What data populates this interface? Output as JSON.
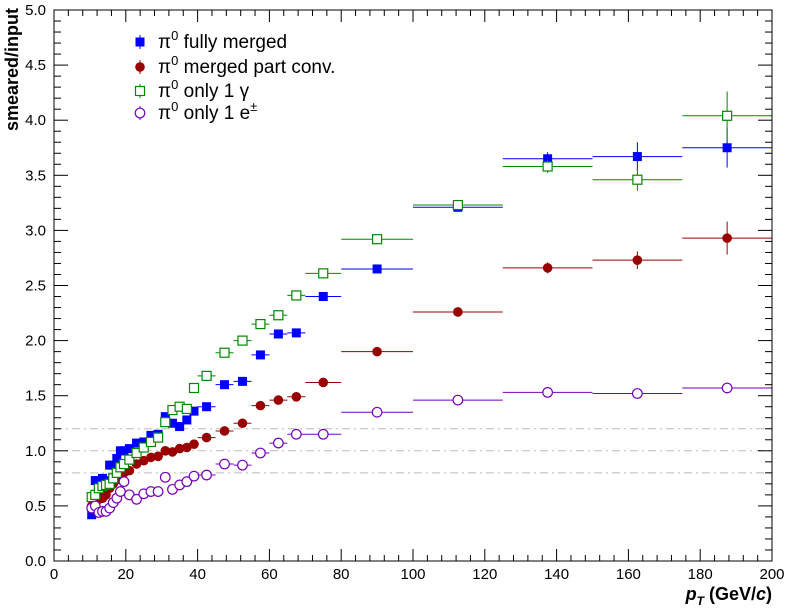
{
  "chart_data": {
    "type": "scatter",
    "xlabel": "p_T (GeV/c)",
    "xlabel_parts": {
      "p": "p",
      "sub": "T",
      "unit_open": " (GeV/",
      "unit_var": "c",
      "unit_close": ")"
    },
    "ylabel": "smeared/input",
    "xlim": [
      0,
      200
    ],
    "ylim": [
      0,
      5
    ],
    "x_ticks": [
      0,
      20,
      40,
      60,
      80,
      100,
      120,
      140,
      160,
      180,
      200
    ],
    "x_tick_labels": [
      "0",
      "20",
      "40",
      "60",
      "80",
      "100",
      "120",
      "140",
      "160",
      "180",
      "200"
    ],
    "y_ticks": [
      0,
      0.5,
      1.0,
      1.5,
      2.0,
      2.5,
      3.0,
      3.5,
      4.0,
      4.5,
      5.0
    ],
    "y_tick_labels": [
      "0.0",
      "0.5",
      "1.0",
      "1.5",
      "2.0",
      "2.5",
      "3.0",
      "3.5",
      "4.0",
      "4.5",
      "5.0"
    ],
    "reference_lines": [
      0.8,
      1.0,
      1.2
    ],
    "legend_position": "top-left",
    "series": [
      {
        "name": "π0 fully merged",
        "label_parts": {
          "main": "π",
          "sup": "0",
          "rest": " fully merged"
        },
        "color": "#0000ff",
        "marker": "square-filled",
        "points": [
          {
            "x": 10.5,
            "y": 0.42,
            "xerr": 0.5,
            "yerr": 0.02
          },
          {
            "x": 11.5,
            "y": 0.73,
            "xerr": 0.5,
            "yerr": 0.02
          },
          {
            "x": 12.5,
            "y": 0.62,
            "xerr": 0.5,
            "yerr": 0.02
          },
          {
            "x": 13.5,
            "y": 0.75,
            "xerr": 0.5,
            "yerr": 0.02
          },
          {
            "x": 14.5,
            "y": 0.73,
            "xerr": 0.5,
            "yerr": 0.02
          },
          {
            "x": 15.5,
            "y": 0.87,
            "xerr": 0.5,
            "yerr": 0.02
          },
          {
            "x": 16.5,
            "y": 0.87,
            "xerr": 0.5,
            "yerr": 0.02
          },
          {
            "x": 17.5,
            "y": 0.93,
            "xerr": 0.5,
            "yerr": 0.02
          },
          {
            "x": 18.5,
            "y": 1.0,
            "xerr": 0.5,
            "yerr": 0.02
          },
          {
            "x": 19.5,
            "y": 1.0,
            "xerr": 0.5,
            "yerr": 0.02
          },
          {
            "x": 21.0,
            "y": 1.02,
            "xerr": 1.0,
            "yerr": 0.02
          },
          {
            "x": 23.0,
            "y": 1.07,
            "xerr": 1.0,
            "yerr": 0.02
          },
          {
            "x": 25.0,
            "y": 1.08,
            "xerr": 1.0,
            "yerr": 0.02
          },
          {
            "x": 27.0,
            "y": 1.14,
            "xerr": 1.0,
            "yerr": 0.02
          },
          {
            "x": 29.0,
            "y": 1.15,
            "xerr": 1.0,
            "yerr": 0.02
          },
          {
            "x": 31.0,
            "y": 1.31,
            "xerr": 1.0,
            "yerr": 0.02
          },
          {
            "x": 33.0,
            "y": 1.25,
            "xerr": 1.0,
            "yerr": 0.02
          },
          {
            "x": 35.0,
            "y": 1.22,
            "xerr": 1.0,
            "yerr": 0.02
          },
          {
            "x": 37.0,
            "y": 1.28,
            "xerr": 1.0,
            "yerr": 0.02
          },
          {
            "x": 39.0,
            "y": 1.36,
            "xerr": 1.0,
            "yerr": 0.02
          },
          {
            "x": 42.5,
            "y": 1.4,
            "xerr": 2.5,
            "yerr": 0.02
          },
          {
            "x": 47.5,
            "y": 1.6,
            "xerr": 2.5,
            "yerr": 0.02
          },
          {
            "x": 52.5,
            "y": 1.63,
            "xerr": 2.5,
            "yerr": 0.02
          },
          {
            "x": 57.5,
            "y": 1.87,
            "xerr": 2.5,
            "yerr": 0.03
          },
          {
            "x": 62.5,
            "y": 2.06,
            "xerr": 2.5,
            "yerr": 0.03
          },
          {
            "x": 67.5,
            "y": 2.07,
            "xerr": 2.5,
            "yerr": 0.03
          },
          {
            "x": 75.0,
            "y": 2.4,
            "xerr": 5.0,
            "yerr": 0.03
          },
          {
            "x": 90.0,
            "y": 2.65,
            "xerr": 10.0,
            "yerr": 0.03
          },
          {
            "x": 112.5,
            "y": 3.21,
            "xerr": 12.5,
            "yerr": 0.04
          },
          {
            "x": 137.5,
            "y": 3.65,
            "xerr": 12.5,
            "yerr": 0.06
          },
          {
            "x": 162.5,
            "y": 3.67,
            "xerr": 12.5,
            "yerr": 0.13
          },
          {
            "x": 187.5,
            "y": 3.75,
            "xerr": 12.5,
            "yerr": 0.18
          }
        ]
      },
      {
        "name": "π0 merged part conv.",
        "label_parts": {
          "main": "π",
          "sup": "0",
          "rest": " merged part conv."
        },
        "color": "#990000",
        "marker": "circle-filled",
        "points": [
          {
            "x": 10.5,
            "y": 0.5,
            "xerr": 0.5,
            "yerr": 0.02
          },
          {
            "x": 11.5,
            "y": 0.53,
            "xerr": 0.5,
            "yerr": 0.02
          },
          {
            "x": 12.5,
            "y": 0.56,
            "xerr": 0.5,
            "yerr": 0.02
          },
          {
            "x": 13.5,
            "y": 0.57,
            "xerr": 0.5,
            "yerr": 0.02
          },
          {
            "x": 14.5,
            "y": 0.6,
            "xerr": 0.5,
            "yerr": 0.02
          },
          {
            "x": 15.5,
            "y": 0.66,
            "xerr": 0.5,
            "yerr": 0.02
          },
          {
            "x": 16.5,
            "y": 0.7,
            "xerr": 0.5,
            "yerr": 0.02
          },
          {
            "x": 17.5,
            "y": 0.74,
            "xerr": 0.5,
            "yerr": 0.02
          },
          {
            "x": 18.5,
            "y": 0.77,
            "xerr": 0.5,
            "yerr": 0.02
          },
          {
            "x": 19.5,
            "y": 0.8,
            "xerr": 0.5,
            "yerr": 0.02
          },
          {
            "x": 21.0,
            "y": 0.82,
            "xerr": 1.0,
            "yerr": 0.02
          },
          {
            "x": 23.0,
            "y": 0.88,
            "xerr": 1.0,
            "yerr": 0.02
          },
          {
            "x": 25.0,
            "y": 0.91,
            "xerr": 1.0,
            "yerr": 0.02
          },
          {
            "x": 27.0,
            "y": 0.94,
            "xerr": 1.0,
            "yerr": 0.02
          },
          {
            "x": 29.0,
            "y": 0.95,
            "xerr": 1.0,
            "yerr": 0.02
          },
          {
            "x": 31.0,
            "y": 1.0,
            "xerr": 1.0,
            "yerr": 0.02
          },
          {
            "x": 33.0,
            "y": 0.99,
            "xerr": 1.0,
            "yerr": 0.02
          },
          {
            "x": 35.0,
            "y": 1.02,
            "xerr": 1.0,
            "yerr": 0.02
          },
          {
            "x": 37.0,
            "y": 1.03,
            "xerr": 1.0,
            "yerr": 0.02
          },
          {
            "x": 39.0,
            "y": 1.06,
            "xerr": 1.0,
            "yerr": 0.02
          },
          {
            "x": 42.5,
            "y": 1.12,
            "xerr": 2.5,
            "yerr": 0.02
          },
          {
            "x": 47.5,
            "y": 1.18,
            "xerr": 2.5,
            "yerr": 0.02
          },
          {
            "x": 52.5,
            "y": 1.25,
            "xerr": 2.5,
            "yerr": 0.02
          },
          {
            "x": 57.5,
            "y": 1.41,
            "xerr": 2.5,
            "yerr": 0.03
          },
          {
            "x": 62.5,
            "y": 1.46,
            "xerr": 2.5,
            "yerr": 0.03
          },
          {
            "x": 67.5,
            "y": 1.49,
            "xerr": 2.5,
            "yerr": 0.03
          },
          {
            "x": 75.0,
            "y": 1.62,
            "xerr": 5.0,
            "yerr": 0.03
          },
          {
            "x": 90.0,
            "y": 1.9,
            "xerr": 10.0,
            "yerr": 0.03
          },
          {
            "x": 112.5,
            "y": 2.26,
            "xerr": 12.5,
            "yerr": 0.04
          },
          {
            "x": 137.5,
            "y": 2.66,
            "xerr": 12.5,
            "yerr": 0.05
          },
          {
            "x": 162.5,
            "y": 2.73,
            "xerr": 12.5,
            "yerr": 0.08
          },
          {
            "x": 187.5,
            "y": 2.93,
            "xerr": 12.5,
            "yerr": 0.15
          }
        ]
      },
      {
        "name": "π0 only 1 γ",
        "label_parts": {
          "main": "π",
          "sup": "0",
          "rest": " only 1 γ"
        },
        "color": "#008800",
        "marker": "square-open",
        "points": [
          {
            "x": 10.5,
            "y": 0.58,
            "xerr": 0.5,
            "yerr": 0.02
          },
          {
            "x": 11.5,
            "y": 0.6,
            "xerr": 0.5,
            "yerr": 0.02
          },
          {
            "x": 12.5,
            "y": 0.66,
            "xerr": 0.5,
            "yerr": 0.02
          },
          {
            "x": 13.5,
            "y": 0.68,
            "xerr": 0.5,
            "yerr": 0.02
          },
          {
            "x": 14.5,
            "y": 0.69,
            "xerr": 0.5,
            "yerr": 0.02
          },
          {
            "x": 15.5,
            "y": 0.7,
            "xerr": 0.5,
            "yerr": 0.02
          },
          {
            "x": 16.5,
            "y": 0.75,
            "xerr": 0.5,
            "yerr": 0.02
          },
          {
            "x": 17.5,
            "y": 0.8,
            "xerr": 0.5,
            "yerr": 0.02
          },
          {
            "x": 18.5,
            "y": 0.85,
            "xerr": 0.5,
            "yerr": 0.02
          },
          {
            "x": 19.5,
            "y": 0.88,
            "xerr": 0.5,
            "yerr": 0.02
          },
          {
            "x": 21.0,
            "y": 0.92,
            "xerr": 1.0,
            "yerr": 0.02
          },
          {
            "x": 23.0,
            "y": 0.98,
            "xerr": 1.0,
            "yerr": 0.02
          },
          {
            "x": 25.0,
            "y": 1.03,
            "xerr": 1.0,
            "yerr": 0.02
          },
          {
            "x": 27.0,
            "y": 1.08,
            "xerr": 1.0,
            "yerr": 0.02
          },
          {
            "x": 29.0,
            "y": 1.12,
            "xerr": 1.0,
            "yerr": 0.02
          },
          {
            "x": 31.0,
            "y": 1.26,
            "xerr": 1.0,
            "yerr": 0.02
          },
          {
            "x": 33.0,
            "y": 1.37,
            "xerr": 1.0,
            "yerr": 0.02
          },
          {
            "x": 35.0,
            "y": 1.4,
            "xerr": 1.0,
            "yerr": 0.02
          },
          {
            "x": 37.0,
            "y": 1.38,
            "xerr": 1.0,
            "yerr": 0.02
          },
          {
            "x": 39.0,
            "y": 1.57,
            "xerr": 1.0,
            "yerr": 0.02
          },
          {
            "x": 42.5,
            "y": 1.68,
            "xerr": 2.5,
            "yerr": 0.02
          },
          {
            "x": 47.5,
            "y": 1.89,
            "xerr": 2.5,
            "yerr": 0.02
          },
          {
            "x": 52.5,
            "y": 2.0,
            "xerr": 2.5,
            "yerr": 0.02
          },
          {
            "x": 57.5,
            "y": 2.15,
            "xerr": 2.5,
            "yerr": 0.03
          },
          {
            "x": 62.5,
            "y": 2.23,
            "xerr": 2.5,
            "yerr": 0.03
          },
          {
            "x": 67.5,
            "y": 2.41,
            "xerr": 2.5,
            "yerr": 0.03
          },
          {
            "x": 75.0,
            "y": 2.61,
            "xerr": 5.0,
            "yerr": 0.03
          },
          {
            "x": 90.0,
            "y": 2.92,
            "xerr": 10.0,
            "yerr": 0.03
          },
          {
            "x": 112.5,
            "y": 3.23,
            "xerr": 12.5,
            "yerr": 0.04
          },
          {
            "x": 137.5,
            "y": 3.58,
            "xerr": 12.5,
            "yerr": 0.06
          },
          {
            "x": 162.5,
            "y": 3.46,
            "xerr": 12.5,
            "yerr": 0.1
          },
          {
            "x": 187.5,
            "y": 4.04,
            "xerr": 12.5,
            "yerr": 0.22
          }
        ]
      },
      {
        "name": "π0 only 1 e±",
        "label_parts": {
          "main": "π",
          "sup": "0",
          "rest": " only 1 e",
          "rest_sup": "±"
        },
        "color": "#7700bb",
        "marker": "circle-open",
        "points": [
          {
            "x": 10.5,
            "y": 0.48,
            "xerr": 0.5,
            "yerr": 0.02
          },
          {
            "x": 11.5,
            "y": 0.5,
            "xerr": 0.5,
            "yerr": 0.02
          },
          {
            "x": 12.5,
            "y": 0.44,
            "xerr": 0.5,
            "yerr": 0.02
          },
          {
            "x": 13.5,
            "y": 0.45,
            "xerr": 0.5,
            "yerr": 0.02
          },
          {
            "x": 14.5,
            "y": 0.45,
            "xerr": 0.5,
            "yerr": 0.02
          },
          {
            "x": 15.5,
            "y": 0.48,
            "xerr": 0.5,
            "yerr": 0.02
          },
          {
            "x": 16.5,
            "y": 0.53,
            "xerr": 0.5,
            "yerr": 0.02
          },
          {
            "x": 17.5,
            "y": 0.57,
            "xerr": 0.5,
            "yerr": 0.02
          },
          {
            "x": 18.5,
            "y": 0.63,
            "xerr": 0.5,
            "yerr": 0.02
          },
          {
            "x": 19.5,
            "y": 0.72,
            "xerr": 0.5,
            "yerr": 0.02
          },
          {
            "x": 21.0,
            "y": 0.6,
            "xerr": 1.0,
            "yerr": 0.02
          },
          {
            "x": 23.0,
            "y": 0.56,
            "xerr": 1.0,
            "yerr": 0.02
          },
          {
            "x": 25.0,
            "y": 0.61,
            "xerr": 1.0,
            "yerr": 0.02
          },
          {
            "x": 27.0,
            "y": 0.63,
            "xerr": 1.0,
            "yerr": 0.02
          },
          {
            "x": 29.0,
            "y": 0.63,
            "xerr": 1.0,
            "yerr": 0.02
          },
          {
            "x": 31.0,
            "y": 0.76,
            "xerr": 1.0,
            "yerr": 0.02
          },
          {
            "x": 33.0,
            "y": 0.65,
            "xerr": 1.0,
            "yerr": 0.02
          },
          {
            "x": 35.0,
            "y": 0.69,
            "xerr": 1.0,
            "yerr": 0.02
          },
          {
            "x": 37.0,
            "y": 0.72,
            "xerr": 1.0,
            "yerr": 0.02
          },
          {
            "x": 39.0,
            "y": 0.77,
            "xerr": 1.0,
            "yerr": 0.02
          },
          {
            "x": 42.5,
            "y": 0.78,
            "xerr": 2.5,
            "yerr": 0.02
          },
          {
            "x": 47.5,
            "y": 0.88,
            "xerr": 2.5,
            "yerr": 0.02
          },
          {
            "x": 52.5,
            "y": 0.87,
            "xerr": 2.5,
            "yerr": 0.02
          },
          {
            "x": 57.5,
            "y": 0.98,
            "xerr": 2.5,
            "yerr": 0.02
          },
          {
            "x": 62.5,
            "y": 1.07,
            "xerr": 2.5,
            "yerr": 0.02
          },
          {
            "x": 67.5,
            "y": 1.15,
            "xerr": 2.5,
            "yerr": 0.02
          },
          {
            "x": 75.0,
            "y": 1.15,
            "xerr": 5.0,
            "yerr": 0.02
          },
          {
            "x": 90.0,
            "y": 1.35,
            "xerr": 10.0,
            "yerr": 0.02
          },
          {
            "x": 112.5,
            "y": 1.46,
            "xerr": 12.5,
            "yerr": 0.02
          },
          {
            "x": 137.5,
            "y": 1.53,
            "xerr": 12.5,
            "yerr": 0.03
          },
          {
            "x": 162.5,
            "y": 1.52,
            "xerr": 12.5,
            "yerr": 0.03
          },
          {
            "x": 187.5,
            "y": 1.57,
            "xerr": 12.5,
            "yerr": 0.05
          }
        ]
      }
    ]
  }
}
